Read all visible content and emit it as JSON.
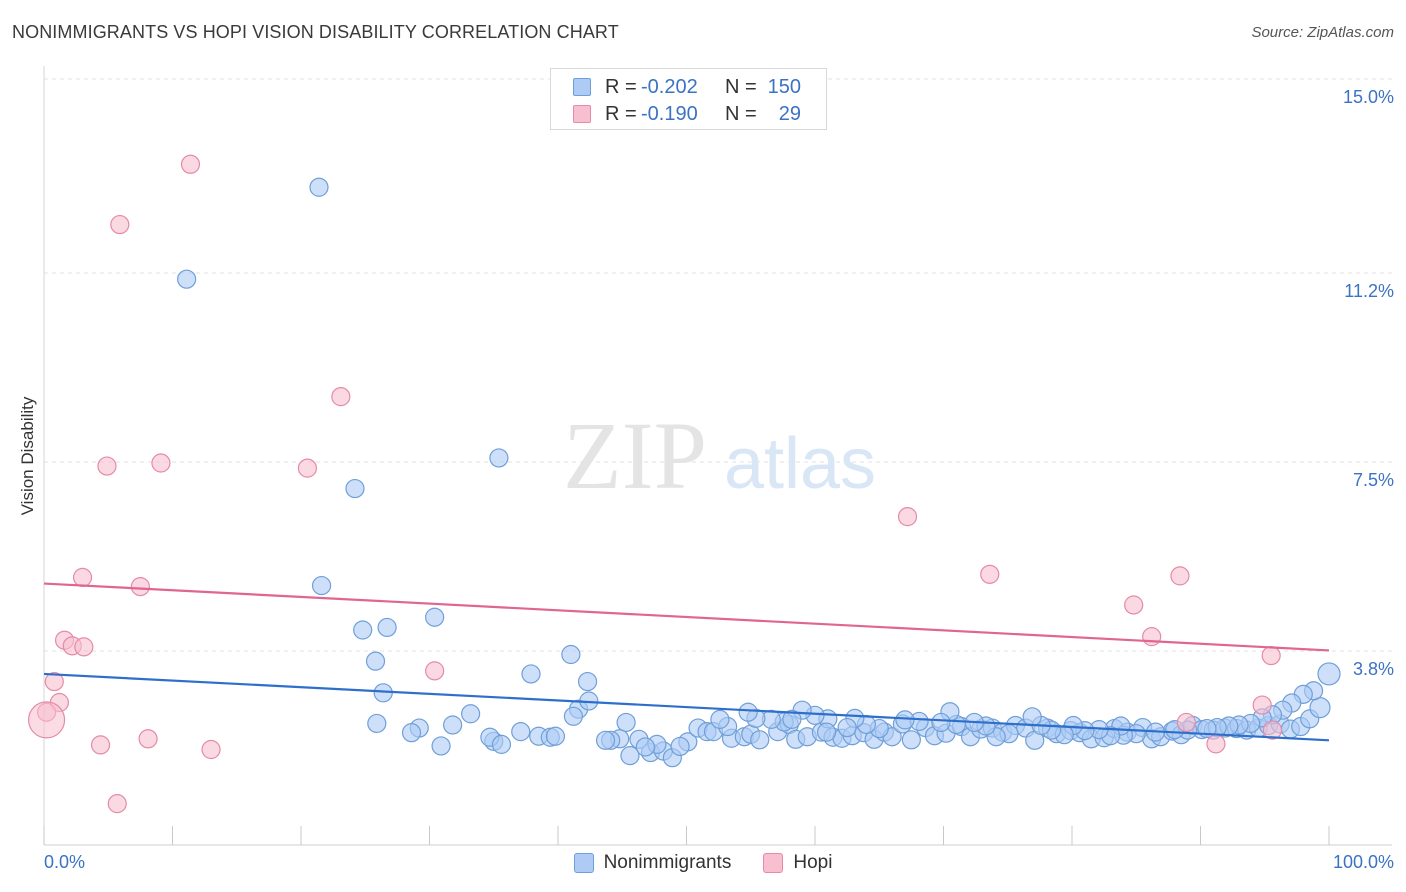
{
  "title": "NONIMMIGRANTS VS HOPI VISION DISABILITY CORRELATION CHART",
  "source": "Source: ZipAtlas.com",
  "watermark": {
    "zip": "ZIP",
    "atlas": "atlas"
  },
  "chart_data": {
    "type": "scatter",
    "ylabel": "Vision Disability",
    "xlim": [
      0,
      100
    ],
    "ylim": [
      0,
      15
    ],
    "x_tick_labels": {
      "left": "0.0%",
      "right": "100.0%"
    },
    "y_ticks": [
      {
        "value": 3.8,
        "label": "3.8%"
      },
      {
        "value": 7.5,
        "label": "7.5%"
      },
      {
        "value": 11.2,
        "label": "11.2%"
      },
      {
        "value": 15.0,
        "label": "15.0%"
      }
    ],
    "grid": "horizontal-dashed",
    "legend_position": "bottom-center",
    "stats": [
      {
        "swatch": "#aecbf5",
        "r_label": "R =",
        "r_value": "-0.202",
        "n_label": "N =",
        "n_value": "150"
      },
      {
        "swatch": "#f7bfd0",
        "r_label": "R =",
        "r_value": "-0.190",
        "n_label": "N =",
        "n_value": "29"
      }
    ],
    "series": [
      {
        "name": "Nonimmigrants",
        "fill": "#aecbf5",
        "stroke": "#6f9fd8",
        "line_color": "#2e6fcc",
        "trend": [
          [
            0,
            3.35
          ],
          [
            100,
            2.05
          ]
        ],
        "points": [
          [
            21.4,
            12.88
          ],
          [
            11.1,
            11.08
          ],
          [
            35.4,
            7.58
          ],
          [
            24.2,
            6.98
          ],
          [
            21.6,
            5.08
          ],
          [
            30.4,
            4.46
          ],
          [
            26.7,
            4.26
          ],
          [
            24.8,
            4.21
          ],
          [
            25.8,
            3.6
          ],
          [
            41.0,
            3.73
          ],
          [
            37.9,
            3.35
          ],
          [
            42.3,
            3.2
          ],
          [
            26.4,
            2.98
          ],
          [
            33.2,
            2.57
          ],
          [
            25.9,
            2.38
          ],
          [
            29.2,
            2.29
          ],
          [
            31.8,
            2.35
          ],
          [
            28.6,
            2.2
          ],
          [
            37.1,
            2.22
          ],
          [
            38.5,
            2.13
          ],
          [
            39.4,
            2.11
          ],
          [
            39.8,
            2.13
          ],
          [
            35.0,
            2.03
          ],
          [
            34.7,
            2.11
          ],
          [
            30.9,
            1.94
          ],
          [
            35.6,
            1.97
          ],
          [
            41.6,
            2.66
          ],
          [
            42.4,
            2.82
          ],
          [
            41.2,
            2.52
          ],
          [
            45.3,
            2.4
          ],
          [
            44.8,
            2.08
          ],
          [
            44.1,
            2.05
          ],
          [
            46.3,
            2.07
          ],
          [
            43.7,
            2.05
          ],
          [
            47.2,
            1.81
          ],
          [
            48.2,
            1.84
          ],
          [
            48.9,
            1.71
          ],
          [
            50.1,
            2.02
          ],
          [
            50.9,
            2.29
          ],
          [
            51.6,
            2.22
          ],
          [
            52.1,
            2.22
          ],
          [
            53.5,
            2.09
          ],
          [
            54.5,
            2.12
          ],
          [
            55.0,
            2.17
          ],
          [
            55.7,
            2.06
          ],
          [
            57.1,
            2.22
          ],
          [
            58.0,
            2.36
          ],
          [
            58.5,
            2.07
          ],
          [
            59.4,
            2.12
          ],
          [
            60.5,
            2.21
          ],
          [
            61.4,
            2.11
          ],
          [
            62.1,
            2.09
          ],
          [
            62.9,
            2.14
          ],
          [
            63.8,
            2.2
          ],
          [
            64.6,
            2.07
          ],
          [
            65.4,
            2.21
          ],
          [
            66.0,
            2.12
          ],
          [
            66.8,
            2.37
          ],
          [
            67.5,
            2.06
          ],
          [
            68.6,
            2.3
          ],
          [
            69.3,
            2.14
          ],
          [
            70.2,
            2.19
          ],
          [
            71.4,
            2.32
          ],
          [
            72.1,
            2.12
          ],
          [
            72.9,
            2.27
          ],
          [
            73.8,
            2.29
          ],
          [
            74.6,
            2.21
          ],
          [
            75.6,
            2.34
          ],
          [
            76.4,
            2.29
          ],
          [
            77.1,
            2.05
          ],
          [
            78.1,
            2.29
          ],
          [
            78.8,
            2.18
          ],
          [
            79.9,
            2.24
          ],
          [
            80.6,
            2.2
          ],
          [
            81.5,
            2.08
          ],
          [
            82.5,
            2.1
          ],
          [
            83.3,
            2.28
          ],
          [
            84.3,
            2.21
          ],
          [
            85.5,
            2.3
          ],
          [
            86.2,
            2.08
          ],
          [
            86.9,
            2.12
          ],
          [
            87.8,
            2.23
          ],
          [
            88.5,
            2.16
          ],
          [
            89.4,
            2.34
          ],
          [
            90.1,
            2.26
          ],
          [
            91.0,
            2.25
          ],
          [
            91.9,
            2.29
          ],
          [
            92.8,
            2.28
          ],
          [
            93.6,
            2.25
          ],
          [
            94.5,
            2.29
          ],
          [
            95.3,
            2.34
          ],
          [
            96.2,
            2.37
          ],
          [
            97.0,
            2.27
          ],
          [
            97.8,
            2.32
          ],
          [
            98.5,
            2.47
          ],
          [
            99.3,
            2.69
          ],
          [
            100.0,
            3.35
          ],
          [
            98.8,
            3.02
          ],
          [
            98.0,
            2.95
          ],
          [
            97.1,
            2.78
          ],
          [
            96.4,
            2.64
          ],
          [
            95.6,
            2.55
          ],
          [
            94.8,
            2.49
          ],
          [
            93.9,
            2.38
          ],
          [
            93.0,
            2.35
          ],
          [
            92.2,
            2.33
          ],
          [
            91.3,
            2.3
          ],
          [
            90.5,
            2.28
          ],
          [
            89.0,
            2.25
          ],
          [
            88.0,
            2.26
          ],
          [
            86.5,
            2.21
          ],
          [
            85.0,
            2.18
          ],
          [
            84.0,
            2.15
          ],
          [
            83.8,
            2.33
          ],
          [
            83.0,
            2.14
          ],
          [
            82.1,
            2.26
          ],
          [
            81.0,
            2.24
          ],
          [
            80.1,
            2.34
          ],
          [
            79.4,
            2.16
          ],
          [
            78.4,
            2.25
          ],
          [
            77.6,
            2.34
          ],
          [
            76.9,
            2.51
          ],
          [
            75.1,
            2.18
          ],
          [
            74.1,
            2.12
          ],
          [
            73.3,
            2.33
          ],
          [
            72.4,
            2.4
          ],
          [
            71.0,
            2.36
          ],
          [
            70.5,
            2.61
          ],
          [
            69.8,
            2.4
          ],
          [
            68.1,
            2.42
          ],
          [
            67.0,
            2.45
          ],
          [
            65.0,
            2.28
          ],
          [
            64.0,
            2.36
          ],
          [
            63.1,
            2.48
          ],
          [
            62.5,
            2.3
          ],
          [
            61.0,
            2.47
          ],
          [
            60.0,
            2.54
          ],
          [
            59.0,
            2.64
          ],
          [
            57.6,
            2.41
          ],
          [
            56.6,
            2.46
          ],
          [
            55.4,
            2.48
          ],
          [
            54.8,
            2.6
          ],
          [
            53.2,
            2.32
          ],
          [
            52.6,
            2.46
          ],
          [
            47.7,
            1.97
          ],
          [
            46.8,
            1.92
          ],
          [
            45.6,
            1.75
          ],
          [
            49.5,
            1.93
          ],
          [
            58.2,
            2.46
          ],
          [
            60.9,
            2.21
          ]
        ]
      },
      {
        "name": "Hopi",
        "fill": "#f7bfd0",
        "stroke": "#e58aa8",
        "line_color": "#e06590",
        "trend": [
          [
            0,
            5.12
          ],
          [
            100,
            3.81
          ]
        ],
        "points": [
          [
            11.4,
            13.33
          ],
          [
            5.9,
            12.15
          ],
          [
            23.1,
            8.78
          ],
          [
            9.1,
            7.48
          ],
          [
            4.9,
            7.42
          ],
          [
            20.5,
            7.38
          ],
          [
            67.2,
            6.43
          ],
          [
            3.0,
            5.24
          ],
          [
            73.6,
            5.3
          ],
          [
            7.5,
            5.06
          ],
          [
            88.4,
            5.27
          ],
          [
            84.8,
            4.7
          ],
          [
            1.6,
            4.01
          ],
          [
            2.2,
            3.9
          ],
          [
            3.1,
            3.88
          ],
          [
            86.2,
            4.08
          ],
          [
            95.5,
            3.71
          ],
          [
            0.8,
            3.2
          ],
          [
            30.4,
            3.41
          ],
          [
            1.2,
            2.79
          ],
          [
            0.2,
            2.6
          ],
          [
            8.1,
            2.08
          ],
          [
            4.4,
            1.96
          ],
          [
            13.0,
            1.87
          ],
          [
            5.7,
            0.81
          ],
          [
            91.2,
            1.98
          ],
          [
            88.9,
            2.4
          ],
          [
            95.6,
            2.25
          ],
          [
            94.8,
            2.74
          ]
        ]
      }
    ]
  }
}
